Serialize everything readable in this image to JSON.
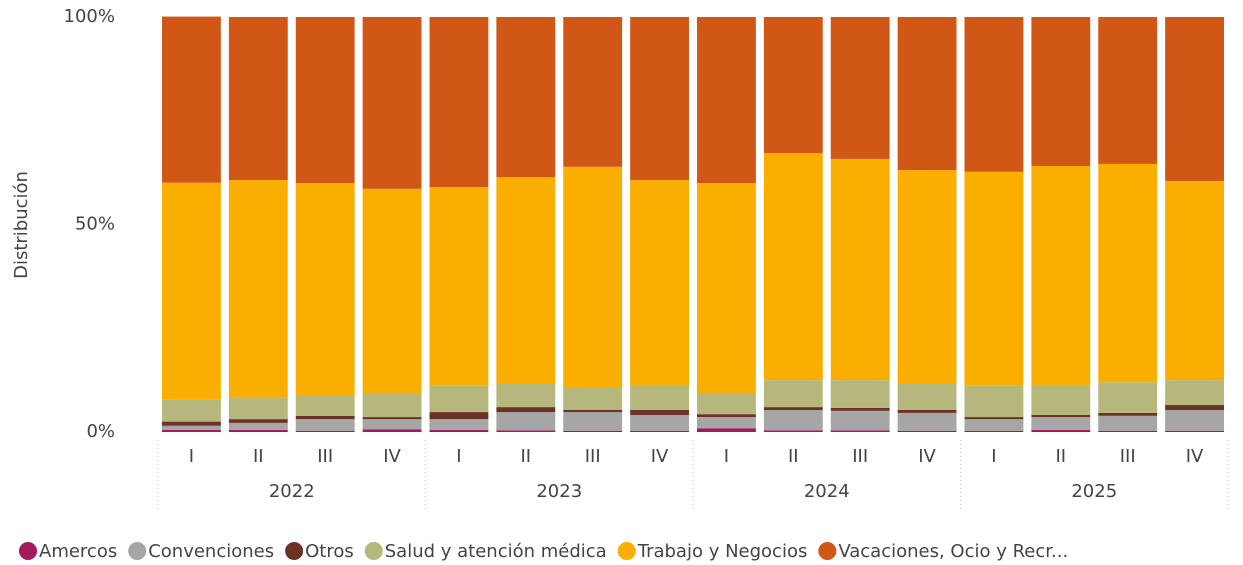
{
  "chart_data": {
    "type": "stacked_bar_100",
    "y_axis_title": "Distribución",
    "categories": [
      "I",
      "II",
      "III",
      "IV",
      "I",
      "II",
      "III",
      "IV",
      "I",
      "II",
      "III",
      "IV",
      "I",
      "II",
      "III",
      "IV"
    ],
    "groups": [
      "2022",
      "2023",
      "2024",
      "2025"
    ],
    "ylim": [
      0,
      100
    ],
    "yticks": [
      {
        "value": 0,
        "label": "0%"
      },
      {
        "value": 50,
        "label": "50%"
      },
      {
        "value": 100,
        "label": "100%"
      }
    ],
    "series": [
      {
        "name": "Amercos",
        "color": "#a3195b",
        "values": [
          0.5,
          0.5,
          0.3,
          0.6,
          0.5,
          0.4,
          0.3,
          0.3,
          0.9,
          0.4,
          0.4,
          0.3,
          0.3,
          0.5,
          0.3,
          0.3
        ]
      },
      {
        "name": "Convenciones",
        "color": "#a6a6a6",
        "values": [
          1.0,
          1.7,
          2.8,
          2.5,
          2.6,
          4.4,
          4.5,
          3.8,
          2.7,
          4.9,
          4.7,
          4.3,
          2.8,
          3.1,
          3.6,
          5.0
        ]
      },
      {
        "name": "Otros",
        "color": "#6b3326",
        "values": [
          1.0,
          0.9,
          0.8,
          0.5,
          1.7,
          1.2,
          0.5,
          1.2,
          0.7,
          0.7,
          0.7,
          0.7,
          0.5,
          0.5,
          0.7,
          1.2
        ]
      },
      {
        "name": "Salud y atención médica",
        "color": "#b5b77c",
        "values": [
          5.3,
          5.3,
          5.0,
          5.8,
          6.5,
          5.8,
          5.3,
          5.8,
          5.1,
          6.5,
          6.7,
          6.5,
          7.7,
          7.0,
          7.4,
          6.0
        ]
      },
      {
        "name": "Trabajo y Negocios",
        "color": "#f9ae00",
        "values": [
          52.3,
          52.3,
          51.1,
          49.2,
          47.7,
          49.6,
          53.3,
          49.6,
          50.6,
          54.7,
          53.3,
          51.3,
          51.4,
          53.0,
          52.6,
          48.0
        ]
      },
      {
        "name": "Vacaciones, Ocio y Recr...",
        "color": "#d05716",
        "values": [
          40.0,
          39.3,
          40.0,
          41.4,
          41.0,
          38.6,
          36.1,
          39.3,
          40.0,
          32.8,
          34.2,
          36.9,
          37.3,
          35.9,
          35.4,
          39.5
        ]
      }
    ]
  }
}
